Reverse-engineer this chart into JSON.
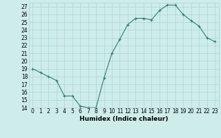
{
  "x": [
    0,
    1,
    2,
    3,
    4,
    5,
    6,
    7,
    8,
    9,
    10,
    11,
    12,
    13,
    14,
    15,
    16,
    17,
    18,
    19,
    20,
    21,
    22,
    23
  ],
  "y": [
    19,
    18.5,
    18,
    17.5,
    15.5,
    15.5,
    14.2,
    14,
    14,
    17.8,
    21,
    22.8,
    24.7,
    25.5,
    25.5,
    25.3,
    26.5,
    27.2,
    27.2,
    26,
    25.2,
    24.5,
    23,
    22.5
  ],
  "line_color": "#2e7d6e",
  "marker": "+",
  "marker_size": 3,
  "bg_color": "#ceecea",
  "grid_color": "#aed4d0",
  "xlabel": "Humidex (Indice chaleur)",
  "ylim": [
    14,
    27.5
  ],
  "yticks": [
    14,
    15,
    16,
    17,
    18,
    19,
    20,
    21,
    22,
    23,
    24,
    25,
    26,
    27
  ],
  "xticks": [
    0,
    1,
    2,
    3,
    4,
    5,
    6,
    7,
    8,
    9,
    10,
    11,
    12,
    13,
    14,
    15,
    16,
    17,
    18,
    19,
    20,
    21,
    22,
    23
  ],
  "xlim": [
    -0.5,
    23.5
  ],
  "tick_fontsize": 5.5,
  "xlabel_fontsize": 6.5,
  "linewidth": 0.8,
  "markeredgewidth": 0.8
}
